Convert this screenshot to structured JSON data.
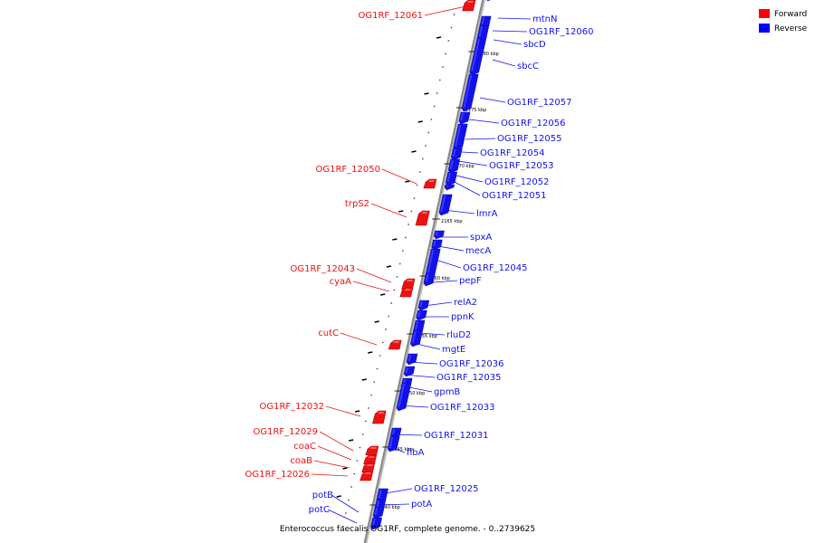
{
  "caption": "Enterococcus faecalis OG1RF, complete genome. - 0..2739625",
  "legend": [
    {
      "label": "Forward",
      "color": "#ff0000"
    },
    {
      "label": "Reverse",
      "color": "#0000ff"
    }
  ],
  "colors": {
    "forward": "#ee1111",
    "reverse": "#1111ee",
    "backbone": "#888888"
  },
  "tick_labels": [
    "2180 kbp",
    "2175 kbp",
    "2170 kbp",
    "2165 kbp",
    "2160 kbp",
    "2155 kbp",
    "2150 kbp",
    "2145 kbp",
    "2140 kbp"
  ],
  "forward_genes": [
    "OG1RF_12061",
    "OG1RF_12050",
    "trpS2",
    "OG1RF_12043",
    "cyaA",
    "cutC",
    "OG1RF_12032",
    "OG1RF_12029",
    "coaC",
    "coaB",
    "OG1RF_12026"
  ],
  "reverse_genes": [
    "mtnN",
    "OG1RF_12060",
    "sbcD",
    "sbcC",
    "OG1RF_12057",
    "OG1RF_12056",
    "OG1RF_12055",
    "OG1RF_12054",
    "OG1RF_12053",
    "OG1RF_12052",
    "OG1RF_12051",
    "lmrA",
    "spxA",
    "mecA",
    "OG1RF_12045",
    "pepF",
    "relA2",
    "ppnK",
    "rluD2",
    "mgtE",
    "OG1RF_12036",
    "OG1RF_12035",
    "gpmB",
    "OG1RF_12033",
    "OG1RF_12031",
    "fibA",
    "OG1RF_12025",
    "potA",
    "potB",
    "potC"
  ]
}
